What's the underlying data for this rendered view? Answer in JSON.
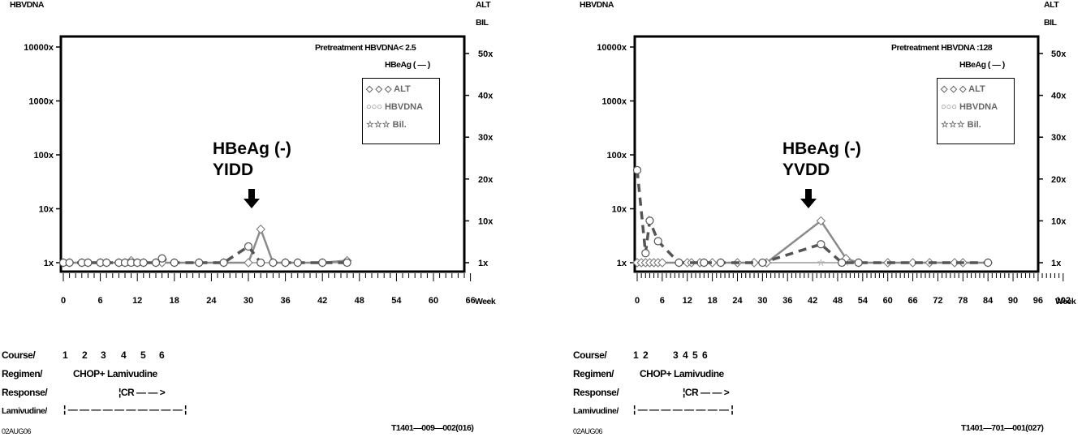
{
  "colors": {
    "alt": "#8a8a8a",
    "hbv_dna": "#555555",
    "bil": "#9a9a9a",
    "frame": "#000000"
  },
  "panels": [
    {
      "left_axis_title": "HBVDNA",
      "right_axis_title": [
        "ALT",
        "BIL"
      ],
      "pretreatment": "Pretreatment HBVDNA< 2.5",
      "hbeag_status": "HBeAg ( — )",
      "legend": {
        "alt": "◇ ◇ ◇ ALT",
        "hbv": "○○○ HBVDNA",
        "bil": "☆☆☆ Bil."
      },
      "annotation": [
        "HBeAg (-)",
        "YIDD"
      ],
      "x_unit_label": "Week",
      "course_label": "Course/",
      "course_numbers": [
        "1",
        "2",
        "3",
        "4",
        "5",
        "6"
      ],
      "regimen_label": "Regimen/",
      "regimen_value": "CHOP+ Lamivudine",
      "response_label": "Response/",
      "response_value": "¦CR — — >",
      "lamivudine_label": "Lamivudine/",
      "lamivudine_value": "¦  — — — — — — — — — —   ¦",
      "date_stamp": "02AUG06",
      "id_code": "T1401—009—002(016)"
    },
    {
      "left_axis_title": "HBVDNA",
      "right_axis_title": [
        "ALT",
        "BIL"
      ],
      "pretreatment": "Pretreatment HBVDNA :128",
      "hbeag_status": "HBeAg ( — )",
      "legend": {
        "alt": "◇ ◇ ◇ ALT",
        "hbv": "○○○ HBVDNA",
        "bil": "☆☆☆ Bil."
      },
      "annotation": [
        "HBeAg (-)",
        "YVDD"
      ],
      "x_unit_label": "Week",
      "course_label": "Course/",
      "course_numbers": [
        "1",
        "2",
        "3",
        "4",
        "5",
        "6"
      ],
      "regimen_label": "Regimen/",
      "regimen_value": "CHOP+ Lamivudine",
      "response_label": "Response/",
      "response_value": "¦CR — — >",
      "lamivudine_label": "Lamivudine/",
      "lamivudine_value": "¦  — — — — — — — —   ¦",
      "date_stamp": "02AUG06",
      "id_code": "T1401—701—001(027)"
    }
  ],
  "chart_data": [
    {
      "type": "line",
      "x_label": "Week",
      "xlim": [
        -1,
        66
      ],
      "x_ticks": [
        0,
        6,
        12,
        18,
        24,
        30,
        36,
        42,
        48,
        54,
        60,
        66
      ],
      "y_left": {
        "scale": "log",
        "ticks": [
          "1x",
          "10x",
          "100x",
          "1000x",
          "10000x"
        ],
        "values": [
          1,
          10,
          100,
          1000,
          10000
        ]
      },
      "y_right": {
        "ticks": [
          "1x",
          "10x",
          "20x",
          "30x",
          "40x",
          "50x"
        ],
        "values": [
          1,
          10,
          20,
          30,
          40,
          50
        ]
      },
      "series": [
        {
          "name": "ALT",
          "axis": "right",
          "style": "solid",
          "x": [
            0,
            1,
            3,
            4,
            6,
            7,
            9,
            10,
            11,
            12,
            13,
            15,
            16,
            18,
            22,
            26,
            30,
            32,
            34,
            36,
            38,
            42,
            46
          ],
          "y": [
            1,
            1,
            1,
            1,
            1,
            1,
            1,
            1,
            1.5,
            1,
            1,
            1,
            1,
            1,
            1,
            1,
            1,
            9,
            1,
            1,
            1,
            1,
            1.5
          ]
        },
        {
          "name": "HBVDNA",
          "axis": "left",
          "style": "dashed",
          "x": [
            0,
            1,
            3,
            4,
            6,
            7,
            9,
            10,
            11,
            12,
            13,
            15,
            16,
            18,
            22,
            26,
            30,
            32,
            34,
            36,
            38,
            42,
            46
          ],
          "y": [
            1,
            1,
            1,
            1,
            1,
            1,
            1,
            1,
            1,
            1,
            1,
            1,
            1.2,
            1,
            1,
            1,
            2,
            1,
            1,
            1,
            1,
            1,
            1
          ]
        },
        {
          "name": "Bil.",
          "axis": "right",
          "style": "solid",
          "x": [
            0,
            1,
            3,
            4,
            6,
            7,
            9,
            10,
            11,
            12,
            13,
            15,
            16,
            18,
            22,
            26,
            30,
            32,
            34,
            36,
            38,
            42,
            46
          ],
          "y": [
            1,
            1,
            1,
            1,
            1,
            1,
            1,
            1,
            1,
            1,
            1,
            1,
            1,
            1,
            1,
            1,
            1,
            1,
            1,
            1,
            1,
            1,
            1
          ]
        }
      ]
    },
    {
      "type": "line",
      "x_label": "Week",
      "xlim": [
        -1,
        102
      ],
      "x_ticks": [
        0,
        6,
        12,
        18,
        24,
        30,
        36,
        42,
        48,
        54,
        60,
        66,
        72,
        78,
        84,
        90,
        96,
        102
      ],
      "y_left": {
        "scale": "log",
        "ticks": [
          "1x",
          "10x",
          "100x",
          "1000x",
          "10000x"
        ],
        "values": [
          1,
          10,
          100,
          1000,
          10000
        ]
      },
      "y_right": {
        "ticks": [
          "1x",
          "10x",
          "20x",
          "30x",
          "40x",
          "50x"
        ],
        "values": [
          1,
          10,
          20,
          30,
          40,
          50
        ]
      },
      "series": [
        {
          "name": "ALT",
          "axis": "right",
          "style": "solid",
          "x": [
            0,
            1,
            2,
            3,
            4,
            5,
            6,
            10,
            12,
            13,
            15,
            16,
            18,
            20,
            24,
            28,
            31,
            44,
            50,
            53,
            60,
            66,
            70,
            76,
            78,
            84
          ],
          "y": [
            1,
            1,
            1,
            1,
            1,
            1,
            1,
            1,
            1,
            1,
            1,
            1,
            1,
            1,
            1,
            1,
            1,
            11,
            2,
            1,
            1,
            1,
            1,
            1,
            1,
            1
          ]
        },
        {
          "name": "HBVDNA",
          "axis": "left",
          "style": "dashed",
          "x": [
            0,
            2,
            3,
            5,
            10,
            16,
            20,
            30,
            44,
            49,
            53,
            84
          ],
          "y": [
            52,
            1.5,
            6,
            2.5,
            1,
            1,
            1,
            1,
            2.2,
            1,
            1,
            1
          ]
        },
        {
          "name": "Bil.",
          "axis": "right",
          "style": "solid",
          "x": [
            0,
            1,
            2,
            3,
            4,
            10,
            12,
            13,
            15,
            16,
            18,
            20,
            24,
            28,
            31,
            44,
            50,
            53,
            60,
            66,
            70,
            76,
            78,
            84
          ],
          "y": [
            1,
            1,
            1,
            1,
            1,
            1,
            1,
            1,
            1,
            1,
            1,
            1,
            1,
            1,
            1,
            1,
            1,
            1,
            1,
            1,
            1,
            1,
            1,
            1
          ]
        }
      ]
    }
  ]
}
